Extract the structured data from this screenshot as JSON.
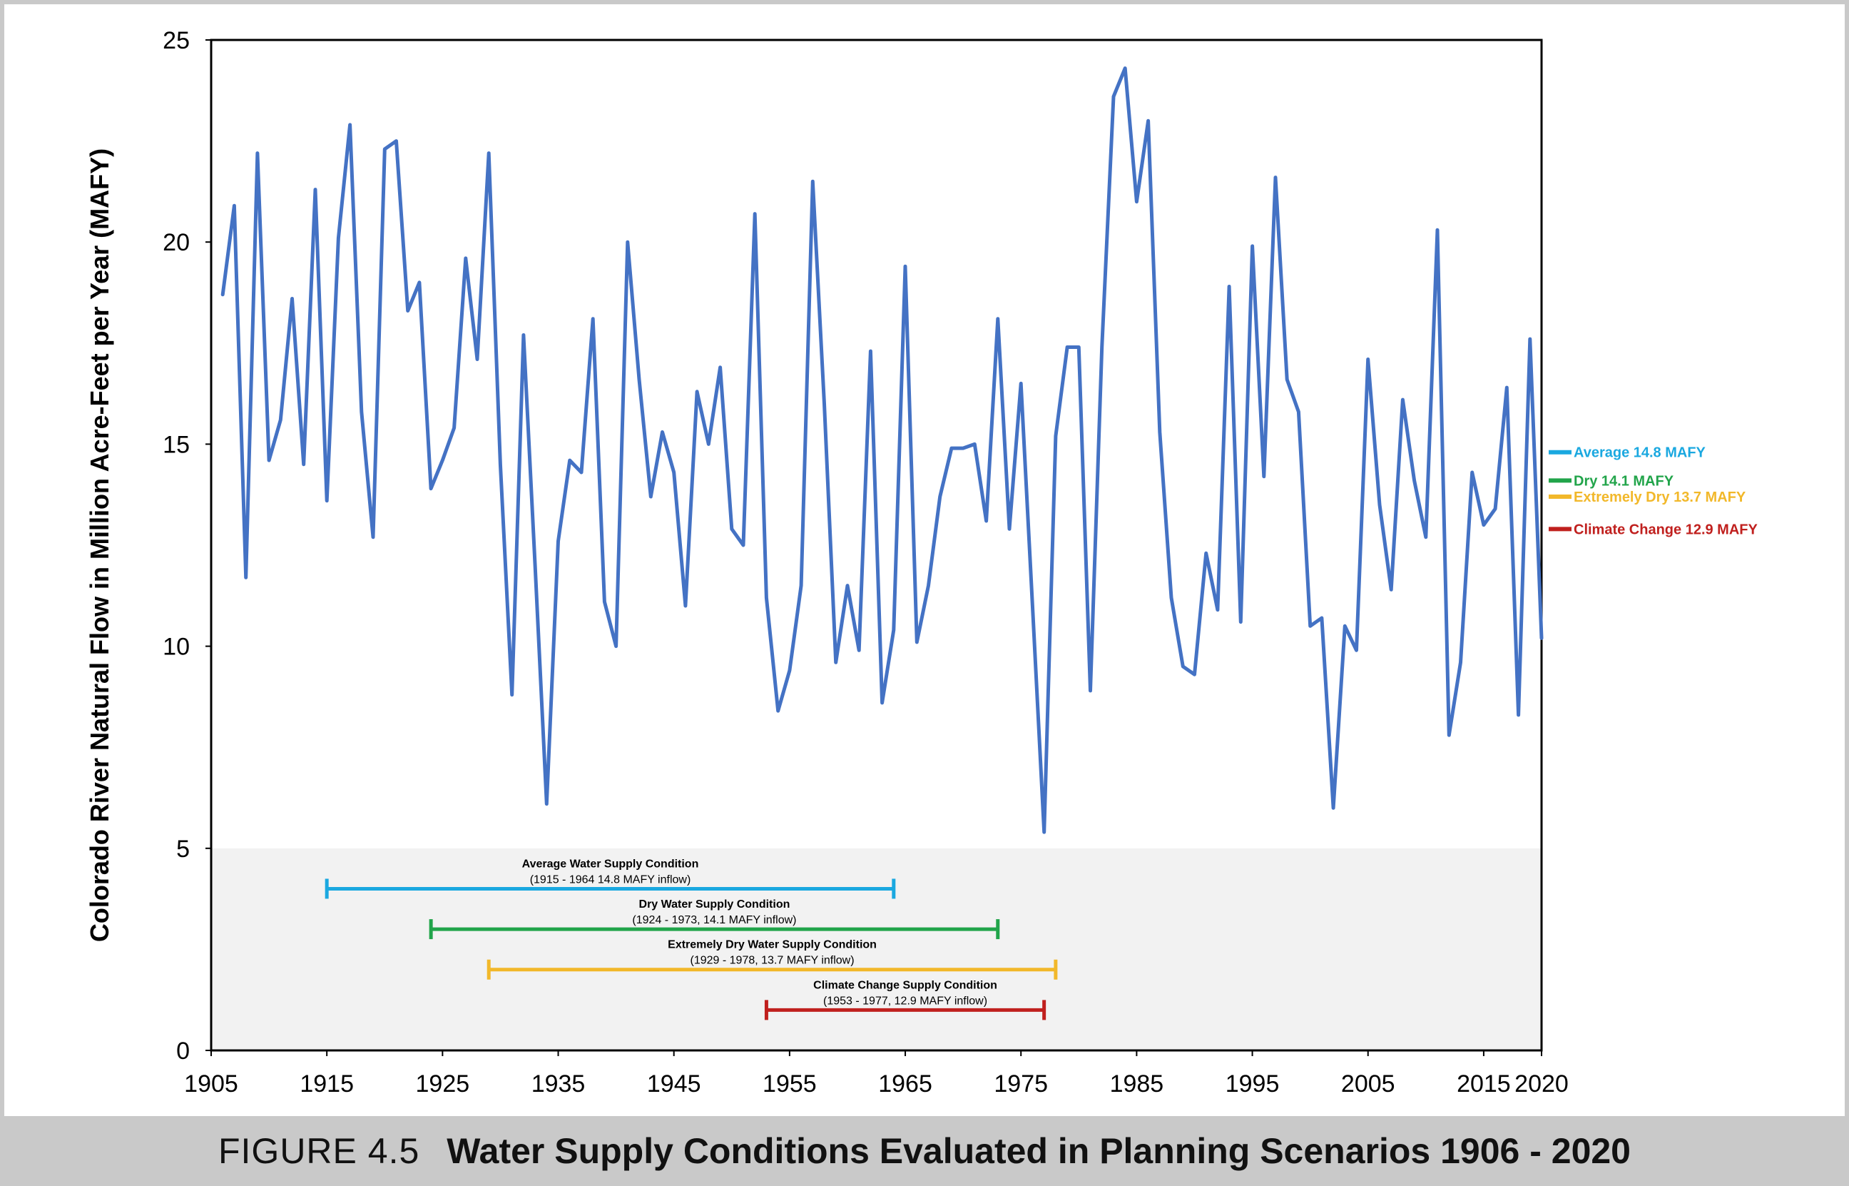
{
  "caption": {
    "figure_label": "FIGURE 4.5",
    "title": "Water Supply Conditions Evaluated in Planning Scenarios 1906 - 2020"
  },
  "chart_data": {
    "type": "line",
    "title": "Water Supply Conditions Evaluated in Planning Scenarios 1906 - 2020",
    "xlabel": "",
    "ylabel": "Colorado River Natural Flow in Million Acre-Feet per Year (MAFY)",
    "xlim": [
      1905,
      2020
    ],
    "ylim": [
      0,
      25
    ],
    "x_ticks": [
      1905,
      1915,
      1925,
      1935,
      1945,
      1955,
      1965,
      1975,
      1985,
      1995,
      2005,
      2015,
      2020
    ],
    "y_ticks": [
      0,
      5,
      10,
      15,
      20,
      25
    ],
    "line_color": "#4472c4",
    "series": [
      {
        "name": "Natural Flow",
        "x": [
          1906,
          1907,
          1908,
          1909,
          1910,
          1911,
          1912,
          1913,
          1914,
          1915,
          1916,
          1917,
          1918,
          1919,
          1920,
          1921,
          1922,
          1923,
          1924,
          1925,
          1926,
          1927,
          1928,
          1929,
          1930,
          1931,
          1932,
          1933,
          1934,
          1935,
          1936,
          1937,
          1938,
          1939,
          1940,
          1941,
          1942,
          1943,
          1944,
          1945,
          1946,
          1947,
          1948,
          1949,
          1950,
          1951,
          1952,
          1953,
          1954,
          1955,
          1956,
          1957,
          1958,
          1959,
          1960,
          1961,
          1962,
          1963,
          1964,
          1965,
          1966,
          1967,
          1968,
          1969,
          1970,
          1971,
          1972,
          1973,
          1974,
          1975,
          1976,
          1977,
          1978,
          1979,
          1980,
          1981,
          1982,
          1983,
          1984,
          1985,
          1986,
          1987,
          1988,
          1989,
          1990,
          1991,
          1992,
          1993,
          1994,
          1995,
          1996,
          1997,
          1998,
          1999,
          2000,
          2001,
          2002,
          2003,
          2004,
          2005,
          2006,
          2007,
          2008,
          2009,
          2010,
          2011,
          2012,
          2013,
          2014,
          2015,
          2016,
          2017,
          2018,
          2019,
          2020
        ],
        "values": [
          18.7,
          20.9,
          11.7,
          22.2,
          14.6,
          15.6,
          18.6,
          14.5,
          21.3,
          13.6,
          20.1,
          22.9,
          15.8,
          12.7,
          22.3,
          22.5,
          18.3,
          19.0,
          13.9,
          14.6,
          15.4,
          19.6,
          17.1,
          22.2,
          14.5,
          8.8,
          17.7,
          12.0,
          6.1,
          12.6,
          14.6,
          14.3,
          18.1,
          11.1,
          10.0,
          20.0,
          16.6,
          13.7,
          15.3,
          14.3,
          11.0,
          16.3,
          15.0,
          16.9,
          12.9,
          12.5,
          20.7,
          11.2,
          8.4,
          9.4,
          11.5,
          21.5,
          16.0,
          9.6,
          11.5,
          9.9,
          17.3,
          8.6,
          10.4,
          19.4,
          10.1,
          11.5,
          13.7,
          14.9,
          14.9,
          15.0,
          13.1,
          18.1,
          12.9,
          16.5,
          11.0,
          5.4,
          15.2,
          17.4,
          17.4,
          8.9,
          17.4,
          23.6,
          24.3,
          21.0,
          23.0,
          15.3,
          11.2,
          9.5,
          9.3,
          12.3,
          10.9,
          18.9,
          10.6,
          19.9,
          14.2,
          21.6,
          16.6,
          15.8,
          10.5,
          10.7,
          6.0,
          10.5,
          9.9,
          17.1,
          13.5,
          11.4,
          16.1,
          14.1,
          12.7,
          20.3,
          7.8,
          9.6,
          14.3,
          13.0,
          13.4,
          16.4,
          8.3,
          17.6,
          10.2
        ]
      }
    ],
    "reference_lines": [
      {
        "label": "Average 14.8 MAFY",
        "value": 14.8,
        "color": "#1aa8e0"
      },
      {
        "label": "Dry 14.1 MAFY",
        "value": 14.1,
        "color": "#21a44a"
      },
      {
        "label": "Extremely Dry 13.7 MAFY",
        "value": 13.7,
        "color": "#f2b82a"
      },
      {
        "label": "Climate Change 12.9 MAFY",
        "value": 12.9,
        "color": "#c0201e"
      }
    ],
    "condition_periods": [
      {
        "title": "Average Water Supply Condition",
        "subtitle": "(1915 -  1964 14.8 MAFY  inflow)",
        "start": 1915,
        "end": 1964,
        "y": 4.0,
        "color": "#1aa8e0"
      },
      {
        "title": "Dry Water Supply  Condition",
        "subtitle": "(1924 -  1973, 14.1 MAFY inflow)",
        "start": 1924,
        "end": 1973,
        "y": 3.0,
        "color": "#21a44a"
      },
      {
        "title": "Extremely Dry  Water Supply Condition",
        "subtitle": "(1929 -  1978, 13.7 MAFY inflow)",
        "start": 1929,
        "end": 1978,
        "y": 2.0,
        "color": "#f2b82a"
      },
      {
        "title": "Climate Change Supply Condition",
        "subtitle": "(1953 -  1977, 12.9 MAFY inflow)",
        "start": 1953,
        "end": 1977,
        "y": 1.0,
        "color": "#c0201e"
      }
    ],
    "shaded_band": {
      "from": 0,
      "to": 5,
      "color": "#f2f2f2"
    }
  }
}
